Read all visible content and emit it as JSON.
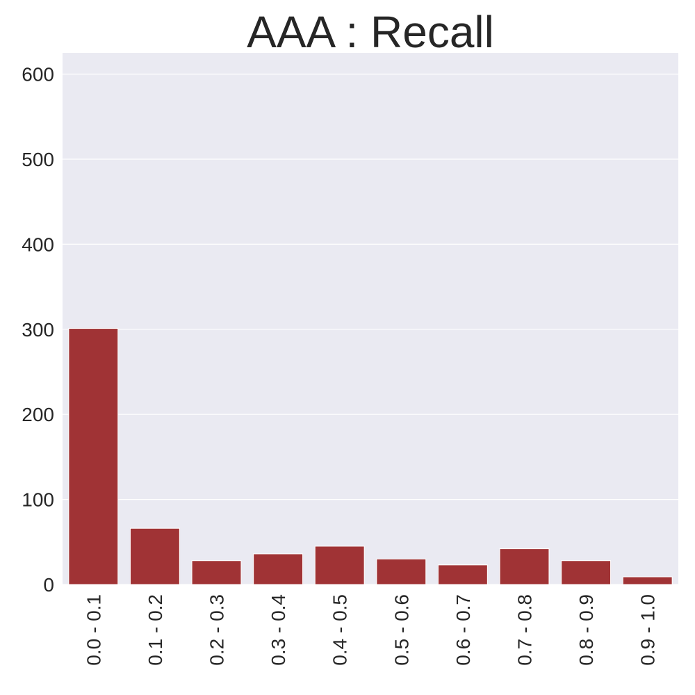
{
  "chart_data": {
    "type": "bar",
    "title": "AAA : Recall",
    "xlabel": "",
    "ylabel": "",
    "categories": [
      "0.0 - 0.1",
      "0.1 - 0.2",
      "0.2 - 0.3",
      "0.3 - 0.4",
      "0.4 - 0.5",
      "0.5 - 0.6",
      "0.6 - 0.7",
      "0.7 - 0.8",
      "0.8 - 0.9",
      "0.9 - 1.0"
    ],
    "values": [
      301,
      66,
      28,
      36,
      45,
      30,
      23,
      42,
      28,
      9
    ],
    "ylim": [
      0,
      625
    ],
    "yticks": [
      0,
      100,
      200,
      300,
      400,
      500,
      600
    ],
    "grid": true,
    "colors": {
      "bar": "#a03335",
      "background": "#eaeaf2",
      "grid": "#ffffff"
    }
  }
}
